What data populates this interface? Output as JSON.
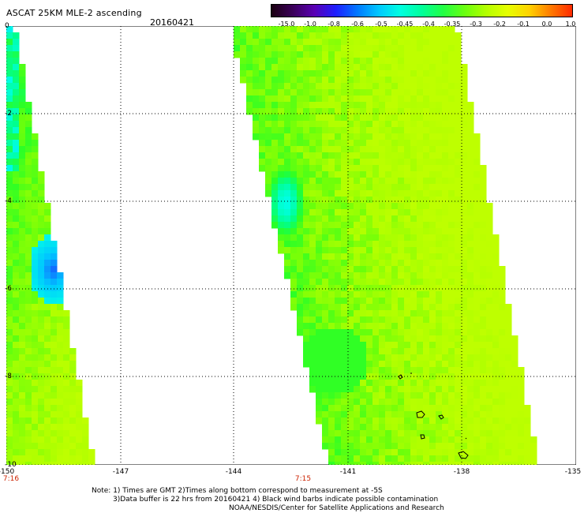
{
  "header": {
    "title": "ASCAT 25KM MLE-2 ascending",
    "date": "20160421"
  },
  "colorbar": {
    "colors": [
      "#1a0010",
      "#3b005a",
      "#5a00b4",
      "#1e1eff",
      "#0078ff",
      "#00c8ff",
      "#00ffe0",
      "#00ff9a",
      "#22ff44",
      "#6aff10",
      "#b4ff00",
      "#e6ff00",
      "#ffd200",
      "#ff7a00",
      "#ff2a00"
    ],
    "labels": [
      "-15.0",
      "-1.0",
      "-0.8",
      "-0.6",
      "-0.5",
      "-0.45",
      "-0.4",
      "-0.35",
      "-0.3",
      "-0.2",
      "-0.1",
      "0.0",
      "1.0"
    ]
  },
  "map": {
    "y_ticks": [
      "0",
      "-2",
      "-4",
      "-6",
      "-8",
      "-10"
    ],
    "x_ticks": [
      "-150",
      "-147",
      "-144",
      "-141",
      "-138",
      "-135"
    ],
    "time_labels": [
      "7:16",
      "7:15"
    ]
  },
  "footer": {
    "line1": "Note: 1) Times are GMT 2)Times along bottom correspond to measurement at -5S",
    "line2": "3)Data buffer is 22 hrs from 20160421 4) Black wind barbs indicate possible contamination",
    "line3": "NOAA/NESDIS/Center for Satellite Applications and Research"
  }
}
